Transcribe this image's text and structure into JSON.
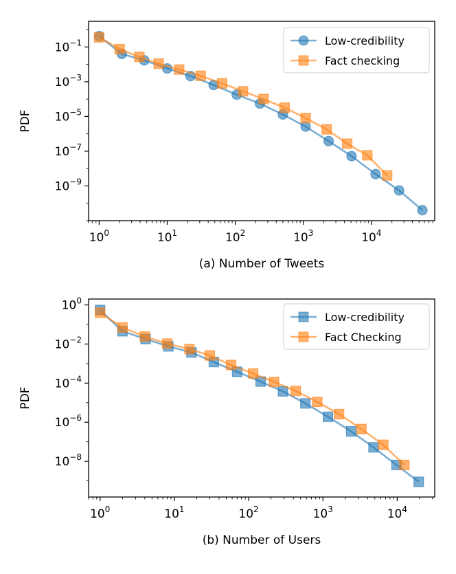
{
  "chart_data": [
    {
      "type": "line",
      "xscale": "log",
      "yscale": "log",
      "xlabel": "(a) Number of Tweets",
      "ylabel": "PDF",
      "xlim": [
        0.7,
        85000
      ],
      "ylim": [
        1e-11,
        3
      ],
      "xticks": [
        {
          "exp": "0",
          "v": 1
        },
        {
          "exp": "1",
          "v": 10
        },
        {
          "exp": "2",
          "v": 100
        },
        {
          "exp": "3",
          "v": 1000
        },
        {
          "exp": "4",
          "v": 10000
        }
      ],
      "yticks": [
        {
          "exp": "−1",
          "v": 0.1
        },
        {
          "exp": "−3",
          "v": 0.001
        },
        {
          "exp": "−5",
          "v": 1e-05
        },
        {
          "exp": "−7",
          "v": 1e-07
        },
        {
          "exp": "−9",
          "v": 1e-09
        }
      ],
      "legend_position": "top-right",
      "series": [
        {
          "name": "Low-credibility",
          "marker": "circle",
          "color": "#1f77b4",
          "x": [
            1,
            2.15,
            4.6,
            10,
            22,
            48,
            105,
            230,
            500,
            1080,
            2350,
            5100,
            11500,
            25500,
            56000
          ],
          "y": [
            0.42,
            0.04,
            0.017,
            0.0058,
            0.0021,
            0.00065,
            0.00018,
            5.5e-05,
            1.3e-05,
            2.6e-06,
            3.8e-07,
            5.2e-08,
            4.8e-09,
            5.5e-10,
            4e-11
          ]
        },
        {
          "name": "Fact checking",
          "marker": "square",
          "color": "#ff7f0e",
          "x": [
            1,
            2,
            3.9,
            7.5,
            15,
            31,
            64,
            130,
            260,
            530,
            1080,
            2200,
            4400,
            8700,
            17000
          ],
          "y": [
            0.36,
            0.075,
            0.027,
            0.011,
            0.005,
            0.0022,
            0.0008,
            0.00028,
            0.0001,
            3.2e-05,
            8.1e-06,
            1.8e-06,
            2.7e-07,
            5.8e-08,
            4e-09
          ]
        }
      ]
    },
    {
      "type": "line",
      "xscale": "log",
      "yscale": "log",
      "xlabel": "(b) Number of Users",
      "ylabel": "PDF",
      "xlim": [
        0.7,
        32000
      ],
      "ylim": [
        1.5e-10,
        2
      ],
      "xticks": [
        {
          "exp": "0",
          "v": 1
        },
        {
          "exp": "1",
          "v": 10
        },
        {
          "exp": "2",
          "v": 100
        },
        {
          "exp": "3",
          "v": 1000
        },
        {
          "exp": "4",
          "v": 10000
        }
      ],
      "yticks": [
        {
          "exp": "0",
          "v": 1
        },
        {
          "exp": "−2",
          "v": 0.01
        },
        {
          "exp": "−4",
          "v": 0.0001
        },
        {
          "exp": "−6",
          "v": 1e-06
        },
        {
          "exp": "−8",
          "v": 1e-08
        }
      ],
      "legend_position": "top-right",
      "series": [
        {
          "name": "Low-credibility",
          "marker": "square",
          "color": "#1f77b4",
          "x": [
            1,
            2,
            4.1,
            8.3,
            17,
            34,
            70,
            145,
            290,
            580,
            1170,
            2400,
            4800,
            9800,
            19500
          ],
          "y": [
            0.55,
            0.045,
            0.018,
            0.0076,
            0.0037,
            0.0012,
            0.00038,
            0.00012,
            3.8e-05,
            9.2e-06,
            1.9e-06,
            3.4e-07,
            5.2e-08,
            6.5e-09,
            9e-10
          ]
        },
        {
          "name": "Fact Checking",
          "marker": "square",
          "color": "#ff7f0e",
          "x": [
            1,
            2,
            4,
            8,
            16,
            30,
            58,
            115,
            220,
            430,
            840,
            1650,
            3300,
            6500,
            12500
          ],
          "y": [
            0.4,
            0.07,
            0.024,
            0.0105,
            0.0055,
            0.0026,
            0.00085,
            0.00031,
            0.000115,
            4e-05,
            1.1e-05,
            2.6e-06,
            4.5e-07,
            7e-08,
            6.5e-09
          ]
        }
      ]
    }
  ]
}
